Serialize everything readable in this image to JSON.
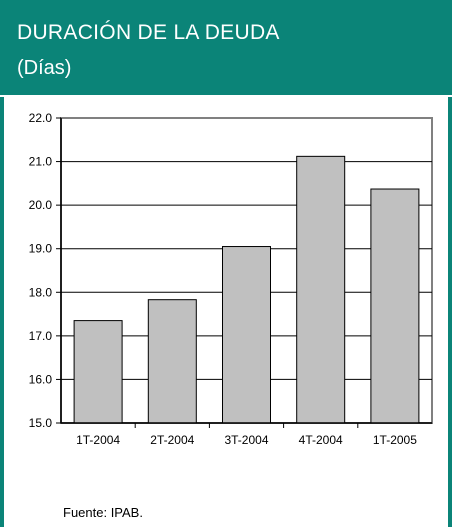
{
  "header": {
    "title": "DURACIÓN DE LA DEUDA",
    "subtitle": "(Días)"
  },
  "source_note": "Fuente: IPAB.",
  "colors": {
    "header_bg": "#0b8478",
    "bar_fill": "#c0c0c0",
    "axis": "#000000",
    "plot_border": "#808080"
  },
  "chart_data": {
    "type": "bar",
    "title": "DURACIÓN DE LA DEUDA",
    "subtitle": "(Días)",
    "categories": [
      "1T-2004",
      "2T-2004",
      "3T-2004",
      "4T-2004",
      "1T-2005"
    ],
    "values": [
      17.35,
      17.83,
      19.05,
      21.12,
      20.37
    ],
    "ylim": [
      15.0,
      22.0
    ],
    "yticks": [
      "15.0",
      "16.0",
      "17.0",
      "18.0",
      "19.0",
      "20.0",
      "21.0",
      "22.0"
    ],
    "grid": true,
    "legend": "none"
  }
}
